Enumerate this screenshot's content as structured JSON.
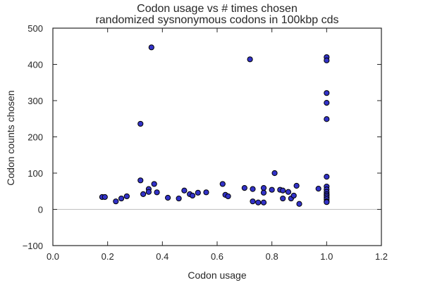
{
  "chart_data": {
    "type": "scatter",
    "title": "Codon usage vs # times chosen",
    "subtitle": "randomized sysnonymous codons in 100kbp cds",
    "xlabel": "Codon usage",
    "ylabel": "Codon counts chosen",
    "xlim": [
      0.0,
      1.2
    ],
    "ylim": [
      -100,
      500
    ],
    "xticks": [
      "0.0",
      "0.2",
      "0.4",
      "0.6",
      "0.8",
      "1.0",
      "1.2"
    ],
    "yticks": [
      "−100",
      "0",
      "100",
      "200",
      "300",
      "400",
      "500"
    ],
    "grid": false,
    "zero_line": true,
    "point_color": "#3232c8",
    "x": [
      0.18,
      0.19,
      0.23,
      0.25,
      0.27,
      0.32,
      0.32,
      0.33,
      0.35,
      0.35,
      0.36,
      0.37,
      0.38,
      0.42,
      0.46,
      0.48,
      0.5,
      0.51,
      0.53,
      0.56,
      0.62,
      0.63,
      0.64,
      0.7,
      0.72,
      0.73,
      0.73,
      0.75,
      0.77,
      0.77,
      0.77,
      0.8,
      0.81,
      0.83,
      0.84,
      0.84,
      0.86,
      0.87,
      0.88,
      0.89,
      0.9,
      0.97,
      1.0,
      1.0,
      1.0,
      1.0,
      1.0,
      1.0,
      1.0,
      1.0,
      1.0,
      1.0,
      1.0,
      1.0,
      1.0,
      1.0,
      1.0
    ],
    "y": [
      34,
      34,
      22,
      30,
      36,
      236,
      80,
      42,
      56,
      48,
      447,
      70,
      47,
      32,
      30,
      52,
      42,
      38,
      46,
      47,
      70,
      40,
      36,
      59,
      414,
      22,
      56,
      19,
      59,
      19,
      46,
      54,
      100,
      54,
      52,
      30,
      48,
      30,
      38,
      65,
      15,
      57,
      420,
      411,
      321,
      294,
      249,
      90,
      63,
      55,
      48,
      42,
      38,
      33,
      28,
      22,
      20
    ]
  }
}
